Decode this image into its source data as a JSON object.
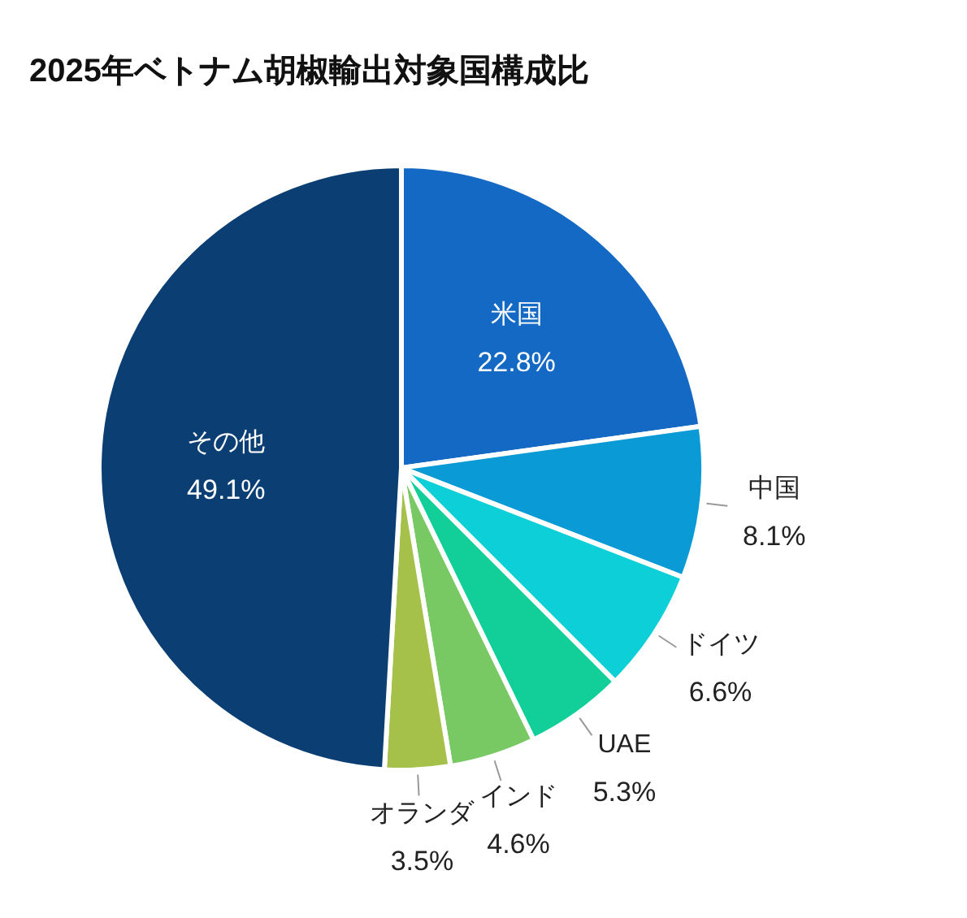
{
  "chart_data": {
    "type": "pie",
    "title": "2025年ベトナム胡椒輸出対象国構成比",
    "categories": [
      "米国",
      "中国",
      "ドイツ",
      "UAE",
      "インド",
      "オランダ",
      "その他"
    ],
    "values": [
      22.8,
      8.1,
      6.6,
      5.3,
      4.6,
      3.5,
      49.1
    ],
    "colors": [
      "#1469c4",
      "#0a9ad6",
      "#0ccfd8",
      "#12cf9a",
      "#78c964",
      "#a6c14a",
      "#0b3f73"
    ],
    "value_labels": [
      "22.8%",
      "8.1%",
      "6.6%",
      "5.3%",
      "4.6%",
      "3.5%",
      "49.1%"
    ]
  }
}
